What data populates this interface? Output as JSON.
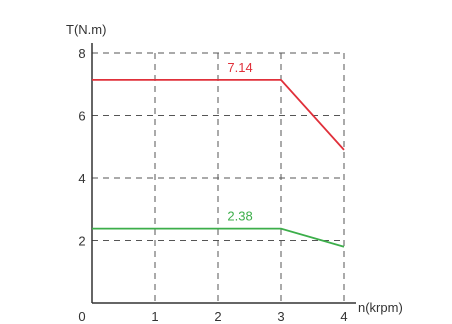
{
  "chart_data": {
    "type": "line",
    "x_axis_label": "n(krpm)",
    "y_axis_label": "T(N.m)",
    "xlim": [
      0,
      4
    ],
    "ylim": [
      0,
      8
    ],
    "x_ticks": [
      "0",
      "1",
      "2",
      "3",
      "4"
    ],
    "y_ticks": [
      "2",
      "4",
      "6",
      "8"
    ],
    "grid": "dashed",
    "series": [
      {
        "color": "#e0303a",
        "points": [
          [
            0,
            7.14
          ],
          [
            3,
            7.14
          ],
          [
            4,
            4.9
          ]
        ],
        "label": "7.14",
        "label_at": [
          2.35,
          7.14
        ]
      },
      {
        "color": "#3cae4a",
        "points": [
          [
            0,
            2.38
          ],
          [
            3,
            2.38
          ],
          [
            4,
            1.8
          ]
        ],
        "label": "2.38",
        "label_at": [
          2.35,
          2.38
        ]
      }
    ]
  }
}
